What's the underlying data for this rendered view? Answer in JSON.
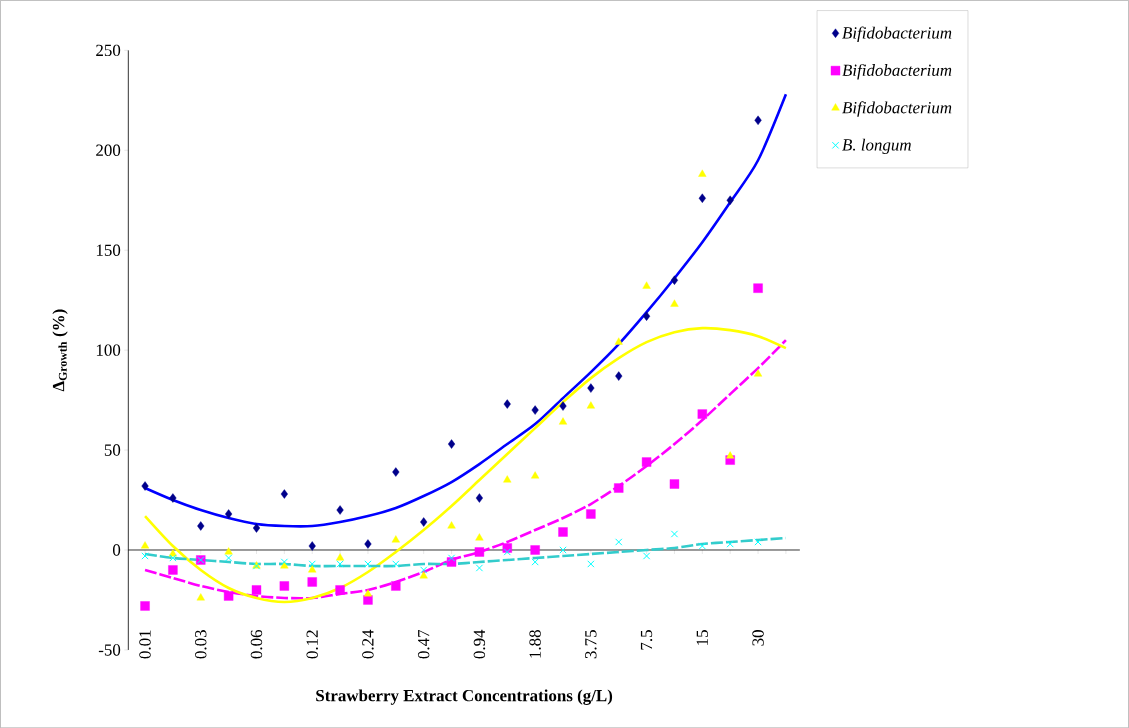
{
  "chart_data": {
    "type": "scatter",
    "xlabel": "Strawberry Extract Concentrations (g/L)",
    "ylabel": "Δ$_{Growth}$ (%)",
    "categories": [
      "0.01",
      null,
      "0.03",
      null,
      "0.06",
      null,
      "0.12",
      null,
      "0.24",
      null,
      "0.47",
      null,
      "0.94",
      null,
      "1.88",
      null,
      "3.75",
      null,
      "7.5",
      null,
      "15",
      null,
      "30",
      null
    ],
    "ylim": [
      -50,
      250
    ],
    "yticks": [
      -50,
      0,
      50,
      100,
      150,
      200,
      250
    ],
    "legend": "top right",
    "series": [
      {
        "name": "Bifidobacterium",
        "marker": "diamond",
        "color": "#00008b",
        "values": [
          32,
          26,
          12,
          18,
          11,
          28,
          2,
          20,
          3,
          39,
          14,
          53,
          26,
          73,
          70,
          72,
          81,
          87,
          117,
          135,
          176,
          175,
          215,
          null
        ]
      },
      {
        "name": "Bifidobacterium",
        "marker": "square",
        "color": "#ff00ff",
        "values": [
          -28,
          -10,
          -5,
          -23,
          -20,
          -18,
          -16,
          -20,
          -25,
          -18,
          null,
          -6,
          -1,
          1,
          0,
          9,
          18,
          31,
          44,
          33,
          68,
          45,
          131,
          null
        ]
      },
      {
        "name": "Bifidobacterium",
        "marker": "triangle",
        "color": "#ffff00",
        "values": [
          2,
          -2,
          -24,
          -1,
          -8,
          -8,
          -10,
          -4,
          -22,
          5,
          -13,
          12,
          6,
          35,
          37,
          64,
          72,
          104,
          132,
          123,
          188,
          47,
          88,
          null
        ]
      },
      {
        "name": "B. longum",
        "marker": "cross",
        "color": "#00ffff",
        "values": [
          -3,
          -4,
          -5,
          -4,
          -8,
          -6,
          -7,
          -7,
          -7,
          -7,
          -10,
          -4,
          -9,
          -1,
          -6,
          0,
          -7,
          4,
          -3,
          8,
          2,
          3,
          4,
          null
        ]
      },
      {
        "type": "line",
        "line_style": "solid",
        "color": "#0000ff",
        "values": [
          31,
          25,
          20,
          16,
          13,
          12,
          12,
          14,
          17,
          21,
          27,
          34,
          43,
          53,
          63,
          76,
          89,
          103,
          119,
          136,
          154,
          174,
          195,
          228
        ]
      },
      {
        "type": "line",
        "line_style": "dashed",
        "color": "#ff00ff",
        "values": [
          -10,
          -14,
          -18,
          -21,
          -23,
          -24,
          -24,
          -22,
          -20,
          -16,
          -11,
          -5,
          -1,
          4,
          10,
          16,
          23,
          32,
          42,
          53,
          65,
          78,
          91,
          105
        ]
      },
      {
        "type": "line",
        "line_style": "solid",
        "color": "#ffff00",
        "values": [
          17,
          2,
          -10,
          -19,
          -24,
          -26,
          -24,
          -19,
          -11,
          -1,
          10,
          22,
          35,
          48,
          61,
          74,
          86,
          96,
          104,
          109,
          111,
          110,
          107,
          101
        ]
      },
      {
        "type": "line",
        "line_style": "dashed",
        "color": "#33cccc",
        "values": [
          -2,
          -4,
          -5,
          -6,
          -7,
          -7,
          -8,
          -8,
          -8,
          -8,
          -7,
          -7,
          -6,
          -5,
          -4,
          -3,
          -2,
          -1,
          0,
          1,
          3,
          4,
          5,
          6
        ]
      }
    ]
  }
}
